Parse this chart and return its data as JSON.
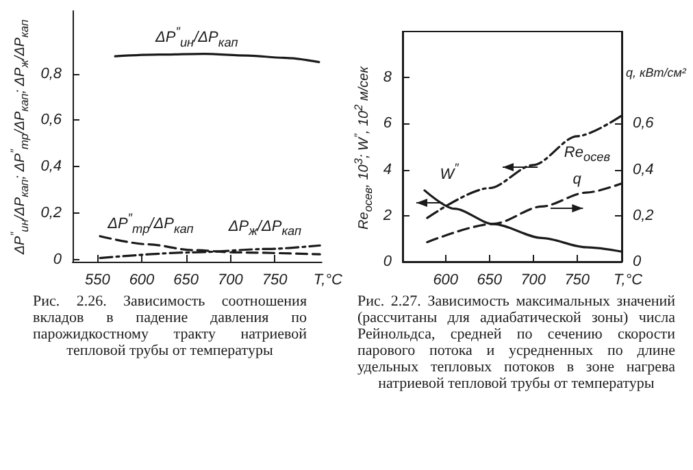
{
  "chart_data": [
    {
      "type": "line",
      "xlabel": "T,°C",
      "ylabel": "ΔP$^{″}$$_{ин}$/ΔP$_{кап}$; ΔP$^{″}$$_{тр}$/ΔP$_{кап}$; ΔP$_{ж}$/ΔP$_{кап}$",
      "xlim": [
        522,
        803
      ],
      "xticks": [
        550,
        600,
        650,
        700,
        750
      ],
      "ylim": [
        -0.01,
        1.07
      ],
      "yticks": [
        0,
        {
          "value": 0.2,
          "label": "0,2"
        },
        {
          "value": 0.4,
          "label": "0,4"
        },
        {
          "value": 0.6,
          "label": "0,6"
        },
        {
          "value": 0.8,
          "label": "0,8"
        }
      ],
      "grid": false,
      "marker": "none",
      "series": [
        {
          "name": "ΔP$^{″}$$_{ин}$/ΔP$_{кап}$",
          "color": "#1a1a1a",
          "line_style": "solid",
          "x": [
            570,
            620,
            670,
            720,
            760,
            800
          ],
          "values": [
            0.875,
            0.882,
            0.885,
            0.878,
            0.868,
            0.85
          ]
        },
        {
          "name": "ΔP$^{″}$$_{тр}$/ΔP$_{кап}$",
          "color": "#1a1a1a",
          "line_style": "dashed",
          "x": [
            553,
            607,
            657,
            707,
            801
          ],
          "values": [
            0.1,
            0.065,
            0.04,
            0.03,
            0.022
          ]
        },
        {
          "name": "ΔP$_{ж}$/ΔP$_{кап}$",
          "color": "#1a1a1a",
          "line_style": "dashdot",
          "x": [
            553,
            657,
            742,
            801
          ],
          "values": [
            0.006,
            0.03,
            0.045,
            0.06
          ]
        }
      ],
      "annotations": [
        "Рис. 2.26. Зависимость соотношения вкладов в падение давления по парожидкостному тракту натриевой тепловой трубы от температуры"
      ]
    },
    {
      "type": "line",
      "xlabel": "T,°C",
      "ylabel": "Re$_{осев}$, 10$^{3}$; W$^{″}$, 10$^{2}$ м/сек",
      "y2label": "q, кВт/см²",
      "xlim": [
        551,
        801
      ],
      "xticks": [
        600,
        650,
        700,
        750
      ],
      "ylim": [
        0,
        10
      ],
      "yticks": [
        0,
        2,
        4,
        6,
        8
      ],
      "y2lim": [
        0,
        1
      ],
      "y2ticks": [
        0,
        {
          "value": 0.2,
          "label": "0,2"
        },
        {
          "value": 0.4,
          "label": "0,4"
        },
        {
          "value": 0.6,
          "label": "0,6"
        }
      ],
      "grid": false,
      "marker": "none",
      "series": [
        {
          "name": "Re$_{осев}$",
          "color": "#1a1a1a",
          "line_style": "dashdot",
          "x": [
            579,
            650,
            700,
            750,
            801
          ],
          "values": [
            1.9,
            3.2,
            4.2,
            5.45,
            6.35
          ]
        },
        {
          "name": "q",
          "color": "#1a1a1a",
          "line_style": "dashed",
          "axis": "y2",
          "x": [
            579,
            655,
            710,
            760,
            801
          ],
          "values": [
            0.085,
            0.165,
            0.24,
            0.3,
            0.34
          ]
        },
        {
          "name": "W$^{″}$",
          "color": "#1a1a1a",
          "line_style": "solid",
          "x": [
            576,
            610,
            655,
            710,
            760,
            801
          ],
          "values": [
            3.1,
            2.3,
            1.63,
            1.03,
            0.63,
            0.44
          ]
        }
      ],
      "annotations": [
        "Рис. 2.27. Зависимость максимальных значений (рассчитаны для адиабатической зоны) числа Рейнольдса, средней по сечению скорости парового потока и усредненных по длине удельных тепловых потоков в зоне нагрева натриевой тепловой трубы от температуры"
      ]
    }
  ]
}
